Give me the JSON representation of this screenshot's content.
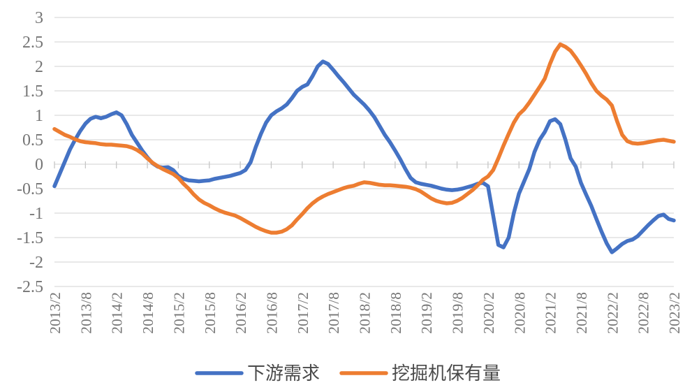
{
  "chart_data": {
    "type": "line",
    "title": "",
    "xlabel": "",
    "ylabel": "",
    "ylim": [
      -2.5,
      3
    ],
    "y_step": 0.5,
    "y_tick_labels": [
      "3",
      "2.5",
      "2",
      "1.5",
      "1",
      "0.5",
      "0",
      "-0.5",
      "-1",
      "-1.5",
      "-2",
      "-2.5"
    ],
    "grid": "horizontal",
    "legend_position": "bottom",
    "x_tick_labels": [
      "2013/2",
      "2013/8",
      "2014/2",
      "2014/8",
      "2015/2",
      "2015/8",
      "2016/2",
      "2016/8",
      "2017/2",
      "2017/8",
      "2018/2",
      "2018/8",
      "2019/2",
      "2019/8",
      "2020/2",
      "2020/8",
      "2021/2",
      "2021/8",
      "2022/2",
      "2022/8",
      "2023/2"
    ],
    "x_note": "monthly points, one per month from 2013/2 to 2023/2, tick labels every 6 months",
    "series": [
      {
        "name": "下游需求",
        "color": "#4472C4",
        "values": [
          -0.45,
          -0.2,
          0.05,
          0.3,
          0.5,
          0.68,
          0.83,
          0.93,
          0.97,
          0.94,
          0.97,
          1.02,
          1.06,
          1.0,
          0.82,
          0.6,
          0.44,
          0.28,
          0.14,
          0.02,
          -0.05,
          -0.07,
          -0.06,
          -0.12,
          -0.24,
          -0.3,
          -0.33,
          -0.34,
          -0.35,
          -0.34,
          -0.33,
          -0.3,
          -0.28,
          -0.26,
          -0.24,
          -0.21,
          -0.18,
          -0.12,
          0.04,
          0.35,
          0.62,
          0.85,
          1.0,
          1.08,
          1.14,
          1.22,
          1.35,
          1.5,
          1.58,
          1.63,
          1.8,
          2.0,
          2.1,
          2.05,
          1.93,
          1.8,
          1.68,
          1.55,
          1.42,
          1.32,
          1.22,
          1.1,
          0.96,
          0.78,
          0.6,
          0.45,
          0.28,
          0.1,
          -0.1,
          -0.28,
          -0.37,
          -0.4,
          -0.42,
          -0.44,
          -0.47,
          -0.5,
          -0.52,
          -0.53,
          -0.52,
          -0.5,
          -0.47,
          -0.44,
          -0.4,
          -0.38,
          -0.45,
          -1.05,
          -1.65,
          -1.7,
          -1.5,
          -1.0,
          -0.6,
          -0.35,
          -0.1,
          0.25,
          0.5,
          0.66,
          0.88,
          0.92,
          0.82,
          0.5,
          0.12,
          -0.05,
          -0.38,
          -0.62,
          -0.85,
          -1.12,
          -1.38,
          -1.62,
          -1.8,
          -1.72,
          -1.63,
          -1.57,
          -1.54,
          -1.47,
          -1.36,
          -1.25,
          -1.15,
          -1.06,
          -1.03,
          -1.12,
          -1.15
        ]
      },
      {
        "name": "挖掘机保有量",
        "color": "#ED7D31",
        "values": [
          0.72,
          0.66,
          0.6,
          0.56,
          0.51,
          0.47,
          0.45,
          0.44,
          0.43,
          0.41,
          0.4,
          0.4,
          0.39,
          0.38,
          0.37,
          0.34,
          0.29,
          0.22,
          0.12,
          0.03,
          -0.04,
          -0.1,
          -0.15,
          -0.2,
          -0.28,
          -0.4,
          -0.5,
          -0.62,
          -0.72,
          -0.79,
          -0.84,
          -0.9,
          -0.95,
          -0.99,
          -1.02,
          -1.05,
          -1.1,
          -1.16,
          -1.22,
          -1.28,
          -1.33,
          -1.37,
          -1.4,
          -1.4,
          -1.38,
          -1.33,
          -1.25,
          -1.13,
          -1.02,
          -0.9,
          -0.8,
          -0.72,
          -0.66,
          -0.61,
          -0.57,
          -0.53,
          -0.49,
          -0.46,
          -0.44,
          -0.4,
          -0.37,
          -0.38,
          -0.4,
          -0.42,
          -0.43,
          -0.43,
          -0.44,
          -0.45,
          -0.46,
          -0.48,
          -0.51,
          -0.56,
          -0.63,
          -0.7,
          -0.75,
          -0.78,
          -0.8,
          -0.79,
          -0.75,
          -0.69,
          -0.61,
          -0.53,
          -0.43,
          -0.32,
          -0.25,
          -0.12,
          0.12,
          0.38,
          0.62,
          0.85,
          1.02,
          1.12,
          1.26,
          1.42,
          1.58,
          1.75,
          2.05,
          2.3,
          2.45,
          2.4,
          2.32,
          2.18,
          2.02,
          1.85,
          1.66,
          1.5,
          1.4,
          1.32,
          1.2,
          0.88,
          0.6,
          0.47,
          0.43,
          0.42,
          0.43,
          0.45,
          0.47,
          0.49,
          0.5,
          0.48,
          0.46
        ]
      }
    ]
  },
  "styles": {
    "background": "#FFFFFF",
    "grid_color": "#D9D9D9",
    "tick_color": "#C6C6C6",
    "axis_text_color": "#757575",
    "legend_text_color": "#4A4A4A"
  }
}
